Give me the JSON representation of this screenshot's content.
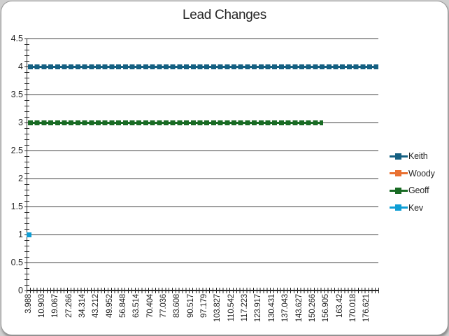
{
  "chart_data": {
    "type": "line",
    "title": "Lead Changes",
    "xlabel": "",
    "ylabel": "",
    "ylim": [
      0,
      4.5
    ],
    "y_tick_labels": [
      "4.5",
      "4",
      "3.5",
      "3",
      "2.5",
      "2",
      "1.5",
      "1",
      "0.5",
      "0"
    ],
    "x_tick_labels": [
      "3.988",
      "10.903",
      "19.067",
      "27.266",
      "34.314",
      "43.212",
      "49.952",
      "56.848",
      "63.514",
      "70.404",
      "77.036",
      "83.608",
      "90.517",
      "97.179",
      "103.827",
      "110.542",
      "117.223",
      "123.917",
      "130.431",
      "137.043",
      "143.627",
      "150.266",
      "156.905",
      "163.42",
      "170.018",
      "176.621"
    ],
    "grid": "horizontal major gridlines every 0.5, dark gray",
    "legend_position": "right",
    "marker_style": "square markers forming dashed-looking constant lines",
    "series": [
      {
        "name": "Keith",
        "color": "#156082",
        "constant_y": 4,
        "x_start": 3.988,
        "x_end": 176.621
      },
      {
        "name": "Woody",
        "color": "#E97132",
        "constant_y": null,
        "x_start": null,
        "x_end": null
      },
      {
        "name": "Geoff",
        "color": "#196B24",
        "constant_y": 3,
        "x_start": 3.988,
        "x_end": 150.266
      },
      {
        "name": "Kev",
        "color": "#0F9ED5",
        "constant_y": 1,
        "x_start": 3.988,
        "x_end": 3.988
      }
    ]
  }
}
